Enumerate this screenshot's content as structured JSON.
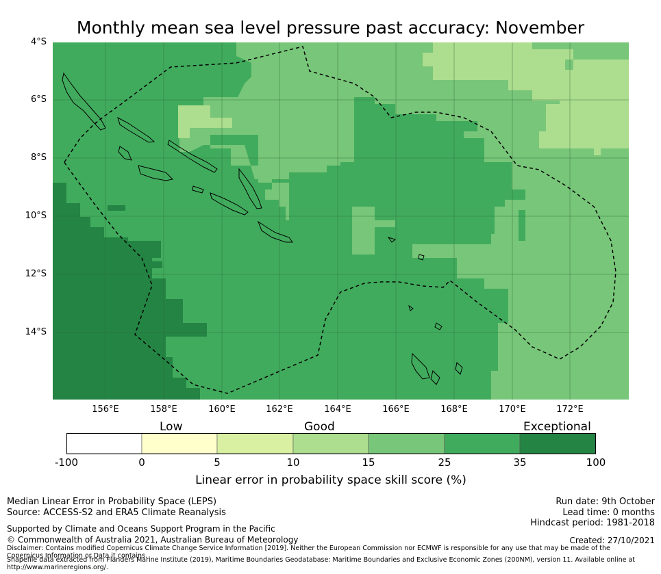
{
  "title": "Monthly mean sea level pressure past accuracy: November",
  "lat_labels": [
    "4°S",
    "6°S",
    "8°S",
    "10°S",
    "12°S",
    "14°S"
  ],
  "lon_labels": [
    "156°E",
    "158°E",
    "160°E",
    "162°E",
    "164°E",
    "166°E",
    "168°E",
    "170°E",
    "172°E"
  ],
  "colorbar": {
    "categories": [
      "Low",
      "Good",
      "Exceptional"
    ],
    "ticks": [
      "-100",
      "0",
      "5",
      "10",
      "15",
      "25",
      "35",
      "100"
    ],
    "colors": [
      "#ffffff",
      "#ffffcc",
      "#d9f0a3",
      "#addd8e",
      "#78c679",
      "#41ab5d",
      "#238443"
    ],
    "label": "Linear error in probability space skill score (%)"
  },
  "map_colors": {
    "exceptional": "#238443",
    "very_good": "#41ab5d",
    "good": "#78c679",
    "fair": "#addd8e",
    "land": "#41ab5d",
    "grid": "#2f6b3a",
    "eez_line": "#000000"
  },
  "footer": {
    "left": [
      "Median Linear Error in Probability Space (LEPS)",
      "Source: ACCESS-S2 and ERA5 Climate Reanalysis"
    ],
    "right": [
      "Run date: 9th October",
      "Lead time: 0 months",
      "Hindcast period: 1981-2018"
    ],
    "support": "Supported by Climate and Oceans Support Program in the Pacific",
    "copyright": "© Commonwealth of Australia 2021, Australian Bureau of Meteorology",
    "created": "Created: 27/10/2021",
    "disclaimer": "Disclaimer: Contains modified Copernicus Climate Change Service Information [2019]. Neither the European Commission nor ECMWF is responsible for any use that may be made of the Copernicus Information or Data it contains.",
    "shapefile": "Shapefile data extracted from Flanders Marine Institute (2019), Maritime Boundaries Geodatabase: Maritime Boundaries and Exclusive Economic Zones (200NM), version 11. Available online at http://www.marineregions.org/."
  }
}
